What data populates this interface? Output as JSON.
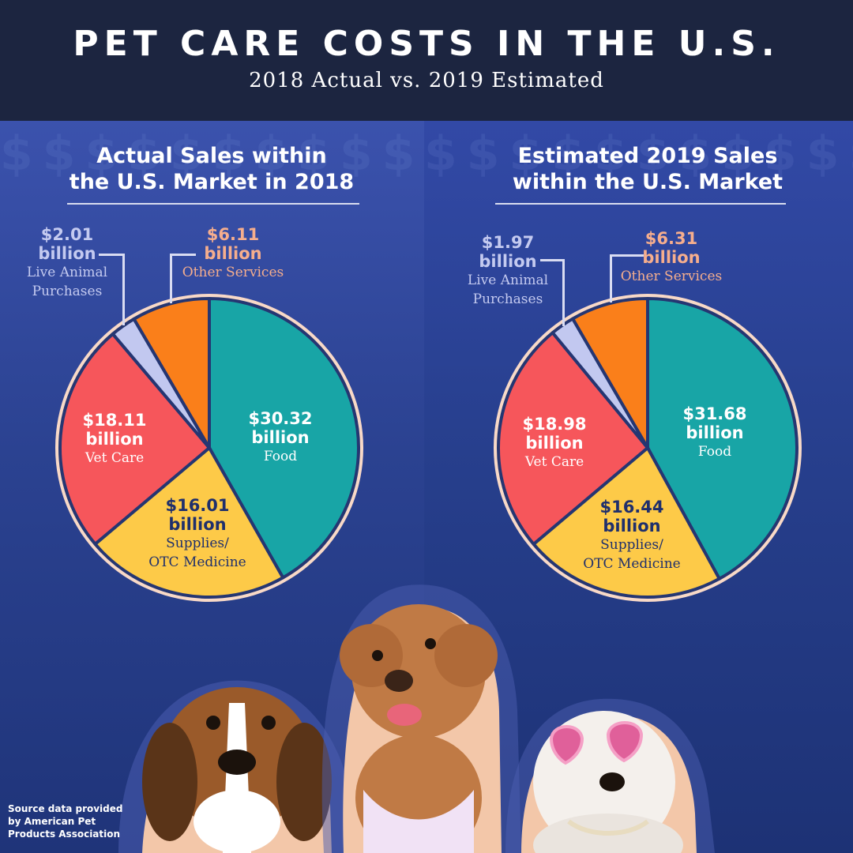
{
  "header": {
    "title": "PET CARE COSTS IN THE U.S.",
    "subtitle": "2018 Actual vs. 2019 Estimated"
  },
  "colors": {
    "header_bg": "#1c2540",
    "panel_bg": "#2b4291",
    "food": "#18a5a6",
    "supplies": "#fdca48",
    "vet": "#f6565b",
    "live": "#c2c8f0",
    "other": "#fa7f1a",
    "pie_border": "#f8d9c7",
    "separator": "#253672"
  },
  "chart_data": [
    {
      "type": "pie",
      "title": "Actual Sales within the U.S. Market in 2018",
      "title_lines": [
        "Actual Sales within",
        "the U.S. Market in 2018"
      ],
      "unit": "billion",
      "slices": [
        {
          "category": "Food",
          "value": 30.32,
          "value_text": "$30.32",
          "unit_text": "billion",
          "category_lines": [
            "Food"
          ]
        },
        {
          "category": "Supplies/ OTC Medicine",
          "value": 16.01,
          "value_text": "$16.01",
          "unit_text": "billion",
          "category_lines": [
            "Supplies/",
            "OTC Medicine"
          ]
        },
        {
          "category": "Vet Care",
          "value": 18.11,
          "value_text": "$18.11",
          "unit_text": "billion",
          "category_lines": [
            "Vet Care"
          ]
        },
        {
          "category": "Live Animal Purchases",
          "value": 2.01,
          "value_text": "$2.01",
          "unit_text": "billion",
          "category_lines": [
            "Live Animal",
            "Purchases"
          ]
        },
        {
          "category": "Other Services",
          "value": 6.11,
          "value_text": "$6.11",
          "unit_text": "billion",
          "category_lines": [
            "Other Services"
          ]
        }
      ]
    },
    {
      "type": "pie",
      "title": "Estimated 2019 Sales within the U.S. Market",
      "title_lines": [
        "Estimated 2019 Sales",
        "within the U.S. Market"
      ],
      "unit": "billion",
      "slices": [
        {
          "category": "Food",
          "value": 31.68,
          "value_text": "$31.68",
          "unit_text": "billion",
          "category_lines": [
            "Food"
          ]
        },
        {
          "category": "Supplies/ OTC Medicine",
          "value": 16.44,
          "value_text": "$16.44",
          "unit_text": "billion",
          "category_lines": [
            "Supplies/",
            "OTC Medicine"
          ]
        },
        {
          "category": "Vet Care",
          "value": 18.98,
          "value_text": "$18.98",
          "unit_text": "billion",
          "category_lines": [
            "Vet Care"
          ]
        },
        {
          "category": "Live Animal Purchases",
          "value": 1.97,
          "value_text": "$1.97",
          "unit_text": "billion",
          "category_lines": [
            "Live Animal",
            "Purchases"
          ]
        },
        {
          "category": "Other Services",
          "value": 6.31,
          "value_text": "$6.31",
          "unit_text": "billion",
          "category_lines": [
            "Other  Services"
          ]
        }
      ]
    }
  ],
  "footer": {
    "source_lines": [
      "Source data provided",
      "by American Pet",
      "Products Association"
    ]
  }
}
